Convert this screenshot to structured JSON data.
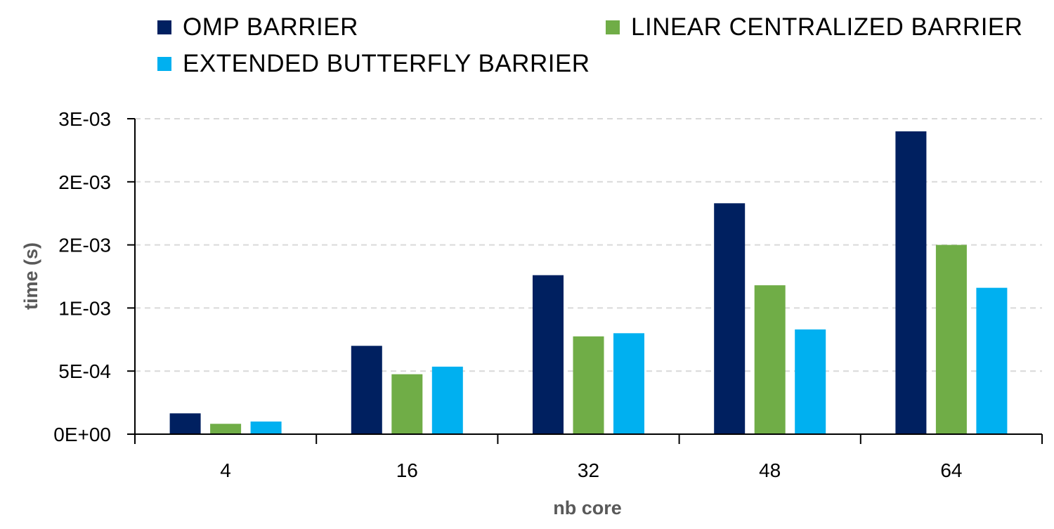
{
  "chart_data": {
    "type": "bar",
    "xlabel": "nb core",
    "ylabel": "time (s)",
    "categories": [
      "4",
      "16",
      "32",
      "48",
      "64"
    ],
    "ylim": [
      0,
      0.0025
    ],
    "ytick_values": [
      0,
      0.0005,
      0.001,
      0.0015,
      0.002,
      0.0025
    ],
    "ytick_labels": [
      "0E+00",
      "5E-04",
      "1E-03",
      "2E-03",
      "2E-03",
      "3E-03"
    ],
    "grid": true,
    "legend_position": "top",
    "series": [
      {
        "name": "OMP BARRIER",
        "color": "#002060",
        "values": [
          0.000165,
          0.0007,
          0.00126,
          0.00183,
          0.0024
        ]
      },
      {
        "name": "LINEAR CENTRALIZED BARRIER",
        "color": "#70AD47",
        "values": [
          8.2e-05,
          0.000475,
          0.000775,
          0.00118,
          0.0015
        ]
      },
      {
        "name": "EXTENDED BUTTERFLY BARRIER",
        "color": "#00B0F0",
        "values": [
          0.0001,
          0.000535,
          0.0008,
          0.00083,
          0.00116
        ]
      }
    ]
  }
}
